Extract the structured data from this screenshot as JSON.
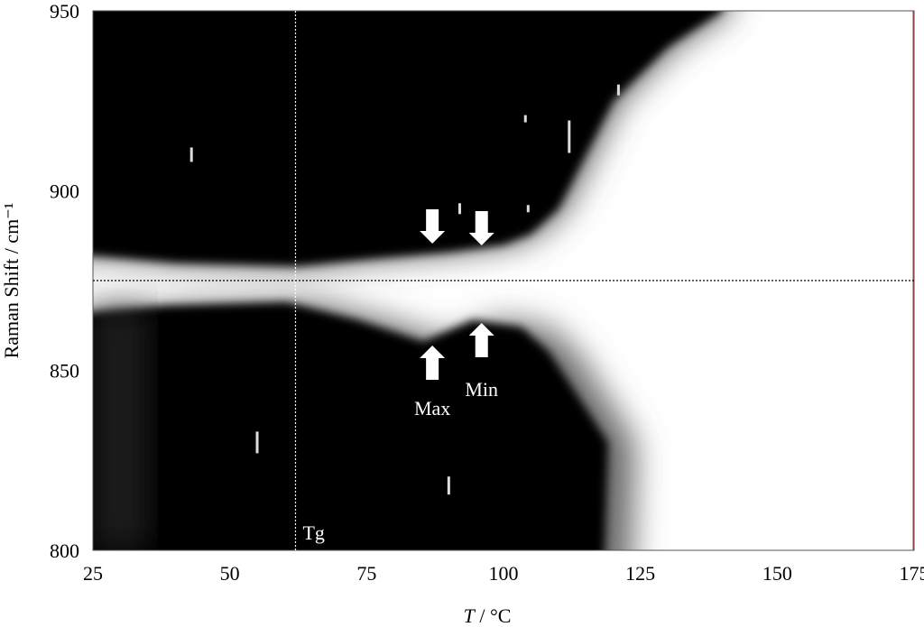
{
  "chart_data": {
    "type": "heatmap",
    "xlabel_italic": "T",
    "xlabel_rest": " / °C",
    "ylabel": "Raman Shift / cm⁻¹",
    "xlim": [
      25,
      175
    ],
    "ylim": [
      800,
      950
    ],
    "x_ticks": [
      "25",
      "50",
      "75",
      "100",
      "125",
      "150",
      "175"
    ],
    "y_ticks": [
      "800",
      "850",
      "900",
      "950"
    ],
    "colormap": "grayscale (black = high intensity, white = low)",
    "reference_line_y": 875,
    "tg": {
      "x": 62,
      "label": "Tg"
    },
    "annotations": [
      {
        "label": "Max",
        "x": 87
      },
      {
        "label": "Min",
        "x": 96
      }
    ],
    "upper_band_edge": [
      [
        25,
        882
      ],
      [
        40,
        880
      ],
      [
        62,
        879
      ],
      [
        75,
        881
      ],
      [
        90,
        883
      ],
      [
        100,
        885
      ],
      [
        105,
        888
      ],
      [
        110,
        895
      ],
      [
        115,
        910
      ],
      [
        120,
        925
      ],
      [
        130,
        940
      ],
      [
        140,
        950
      ]
    ],
    "lower_band_edge": [
      [
        25,
        866
      ],
      [
        40,
        868
      ],
      [
        62,
        869
      ],
      [
        75,
        864
      ],
      [
        87,
        858
      ],
      [
        96,
        864
      ],
      [
        105,
        862
      ]
    ],
    "lower_band_right_limit": [
      [
        800,
        124
      ],
      [
        850,
        122
      ],
      [
        860,
        110
      ]
    ]
  }
}
